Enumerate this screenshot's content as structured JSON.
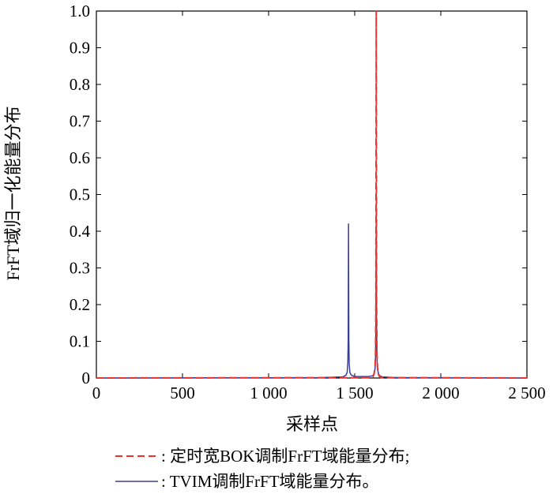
{
  "chart_data": {
    "type": "line",
    "title": "",
    "xlabel": "采样点",
    "ylabel": "FrFT域归一化能量分布",
    "xlim": [
      0,
      2500
    ],
    "ylim": [
      0,
      1.0
    ],
    "x_ticks": [
      0,
      500,
      1000,
      1500,
      2000,
      2500
    ],
    "x_tick_labels": [
      "0",
      "500",
      "1 000",
      "1 500",
      "2 000",
      "2 500"
    ],
    "y_ticks": [
      0,
      0.1,
      0.2,
      0.3,
      0.4,
      0.5,
      0.6,
      0.7,
      0.8,
      0.9,
      1.0
    ],
    "y_tick_labels": [
      "0",
      "0.1",
      "0.2",
      "0.3",
      "0.4",
      "0.5",
      "0.6",
      "0.7",
      "0.8",
      "0.9",
      "1.0"
    ],
    "grid": false,
    "legend_position": "bottom",
    "series": [
      {
        "name": ": 定时宽BOK调制FrFT域能量分布;",
        "color": "#e8352f",
        "style": "dashed",
        "x": [
          0,
          1595,
          1605,
          1612,
          1618,
          1621,
          1623,
          1625,
          1627,
          1629,
          1632,
          1638,
          1645,
          1655,
          2500
        ],
        "y": [
          0,
          0.001,
          0.003,
          0.01,
          0.03,
          0.07,
          0.2,
          1.0,
          0.2,
          0.07,
          0.03,
          0.01,
          0.003,
          0.001,
          0
        ]
      },
      {
        "name": ": TVIM调制FrFT域能量分布。",
        "color": "#3a3f96",
        "style": "solid",
        "x": [
          0,
          1300,
          1430,
          1450,
          1456,
          1460,
          1462,
          1464,
          1466,
          1468,
          1472,
          1480,
          1500,
          1580,
          1605,
          1612,
          1618,
          1621,
          1623,
          1625,
          1627,
          1629,
          1632,
          1638,
          1645,
          1660,
          1750,
          2500
        ],
        "y": [
          0,
          0.001,
          0.003,
          0.008,
          0.015,
          0.04,
          0.1,
          0.42,
          0.1,
          0.04,
          0.015,
          0.008,
          0.004,
          0.004,
          0.006,
          0.012,
          0.025,
          0.06,
          0.15,
          0.51,
          0.15,
          0.06,
          0.025,
          0.012,
          0.006,
          0.003,
          0.001,
          0
        ]
      }
    ]
  }
}
